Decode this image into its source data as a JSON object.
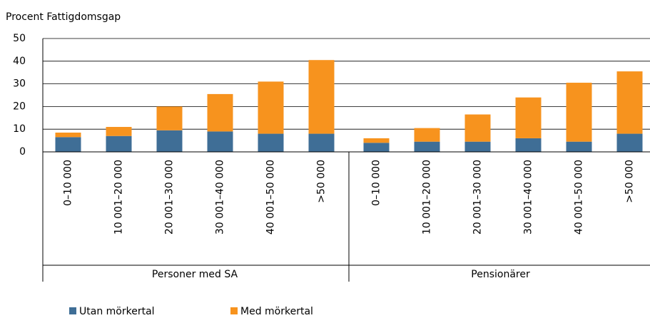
{
  "chart_data": {
    "type": "stacked_bar",
    "y_label": "Procent Fattigdomsgap",
    "groups": [
      {
        "name": "Personer med SA",
        "categories": [
          "0–10 000",
          "10 001–20 000",
          "20 001–30 000",
          "30 001–40 000",
          "40 001–50 000",
          ">50 000"
        ]
      },
      {
        "name": "Pensionärer",
        "categories": [
          "0–10 000",
          "10 001–20 000",
          "20 001–30 000",
          "30 001–40 000",
          "40 001–50 000",
          ">50 000"
        ]
      }
    ],
    "series": [
      {
        "name": "Utan mörkertal",
        "color": "#3f6e96",
        "values": [
          6.5,
          7,
          9.5,
          9,
          8,
          8,
          4,
          4.5,
          4.5,
          6,
          4.5,
          8
        ]
      },
      {
        "name": "Med mörkertal",
        "color": "#f7931e",
        "values": [
          2,
          4,
          10.5,
          16.5,
          23,
          32.5,
          2,
          6,
          12,
          18,
          26,
          27.5
        ]
      }
    ],
    "ylim": [
      0,
      50
    ],
    "yticks": [
      0,
      10,
      20,
      30,
      40,
      50
    ],
    "grid": true
  }
}
